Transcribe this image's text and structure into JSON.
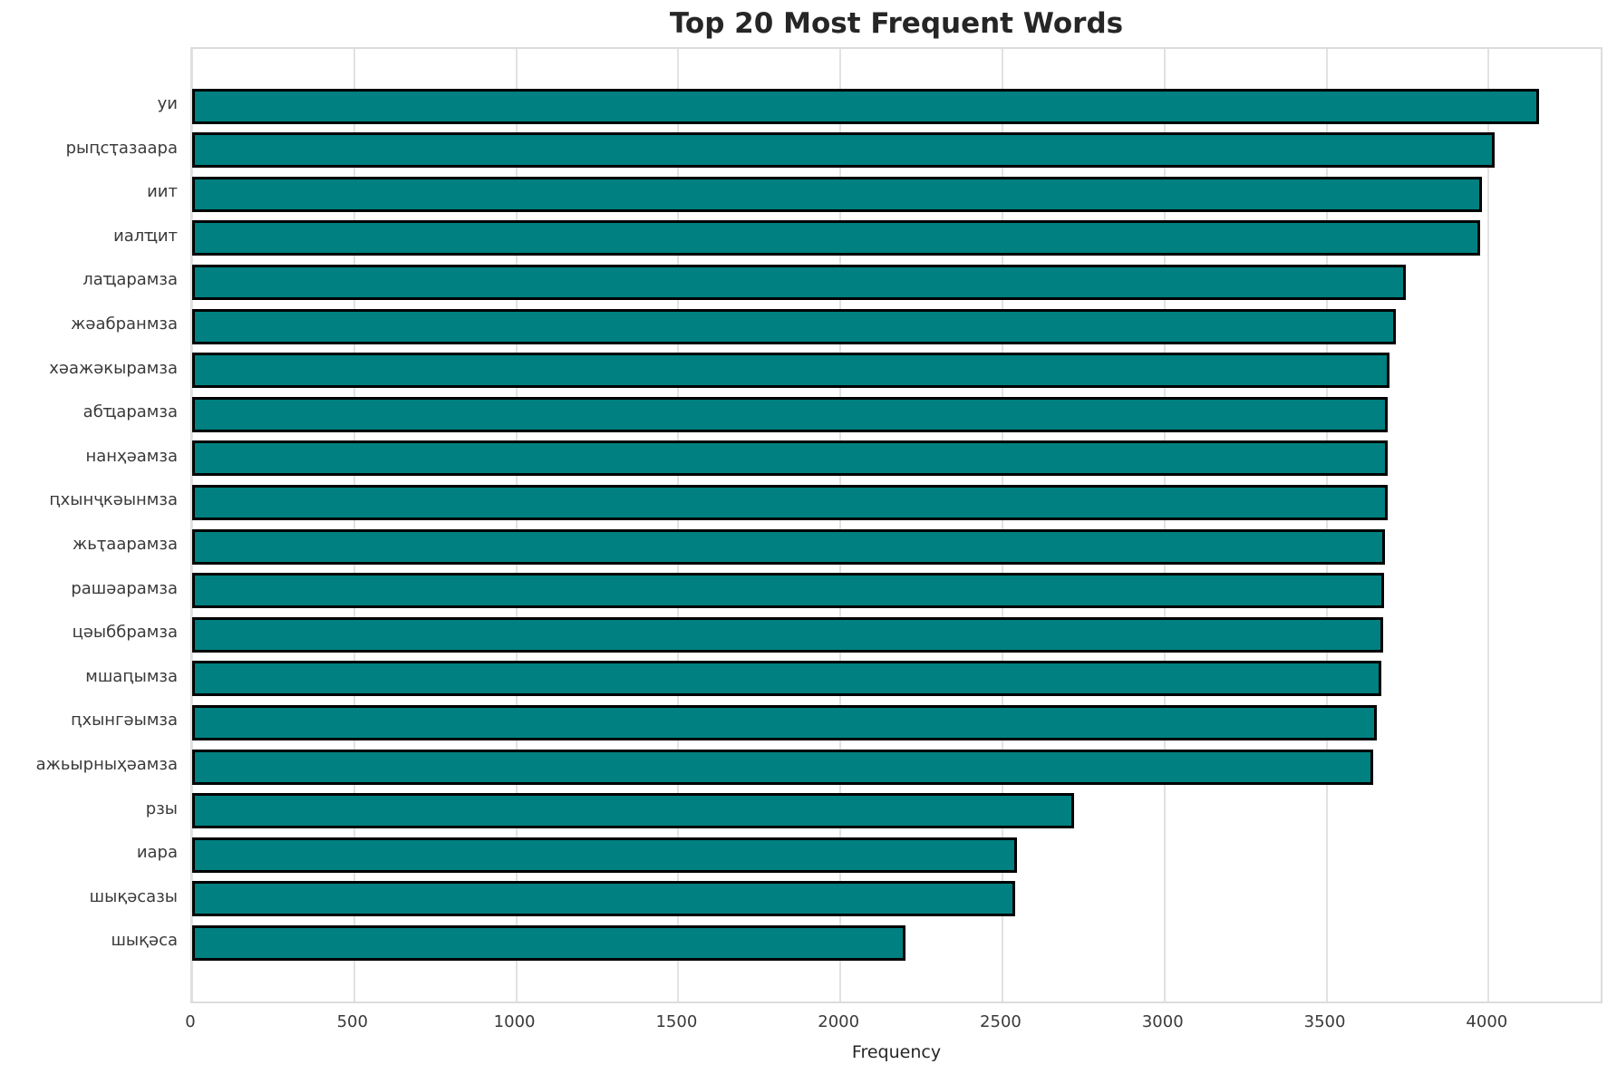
{
  "title": "Top 20 Most Frequent Words",
  "colors": {
    "bar_fill": "#008080",
    "bar_edge": "#000000",
    "grid": "#e2e2e2",
    "title_text": "#262626",
    "tick_text": "#3a3a3a"
  },
  "chart_data": {
    "type": "bar",
    "orientation": "horizontal",
    "title": "Top 20 Most Frequent Words",
    "xlabel": "Frequency",
    "ylabel": "",
    "categories": [
      "уи",
      "рыԥсҭазаара",
      "иит",
      "иалҵит",
      "лаҵарамза",
      "жәабранмза",
      "хәажәкырамза",
      "абҵарамза",
      "нанҳәамза",
      "ԥхынҷкәынмза",
      "жьҭаарамза",
      "рашәарамза",
      "цәыббрамза",
      "мшаԥымза",
      "ԥхынгәымза",
      "ажьырныҳәамза",
      "рзы",
      "иара",
      "шықәсазы",
      "шықәса"
    ],
    "values": [
      4155,
      4020,
      3980,
      3975,
      3745,
      3715,
      3695,
      3690,
      3690,
      3688,
      3680,
      3678,
      3675,
      3670,
      3655,
      3645,
      2720,
      2545,
      2540,
      2200
    ],
    "xticks": [
      0,
      500,
      1000,
      1500,
      2000,
      2500,
      3000,
      3500,
      4000
    ],
    "xlim": [
      0,
      4357
    ],
    "grid": true,
    "legend": false,
    "bar_color": "#008080",
    "bar_edge_color": "#000000"
  }
}
